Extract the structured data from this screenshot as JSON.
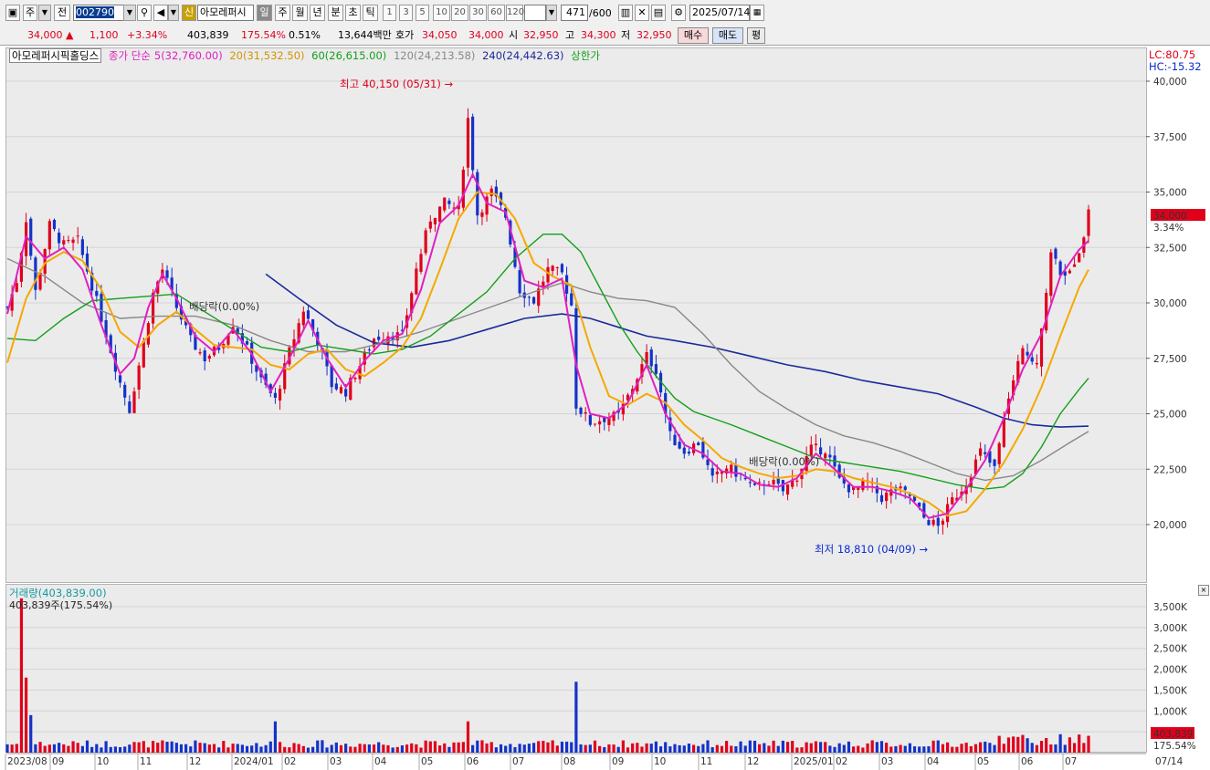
{
  "toolbar": {
    "market": "주",
    "prev": "전",
    "code": "002790",
    "indicator_badge": "신",
    "name_short": "아모레퍼시",
    "periods": [
      "일",
      "주",
      "월",
      "년",
      "분",
      "초",
      "틱"
    ],
    "active_period": "일",
    "intervals": [
      "1",
      "3",
      "5",
      "10",
      "20",
      "30",
      "60",
      "120"
    ],
    "count": "471",
    "count_total": "/600",
    "date": "2025/07/14"
  },
  "quote": {
    "price": "34,000",
    "change": "1,100",
    "change_pct": "+3.34%",
    "volume": "403,839",
    "volume_ratio": "175.54%",
    "turnover": "0.51%",
    "amount": "13,644백만",
    "hoga_label": "호가",
    "ask": "34,050",
    "bid": "34,000",
    "open_label": "시",
    "open": "32,950",
    "high_label": "고",
    "high": "34,300",
    "low_label": "저",
    "low": "32,950",
    "buy": "매수",
    "sell": "매도",
    "eval": "평"
  },
  "legend": {
    "stock_name": "아모레퍼시픽홀딩스",
    "close_type": "종가 단순",
    "ma5": "5(32,760.00)",
    "ma20": "20(31,532.50)",
    "ma60": "60(26,615.00)",
    "ma120": "120(24,213.58)",
    "ma240": "240(24,442.63)",
    "upper_limit": "상한가"
  },
  "right_info": {
    "lc": "LC:80.75",
    "hc": "HC:-15.32"
  },
  "annotations": {
    "high": "최고 40,150 (05/31)",
    "low": "최저 18,810 (04/09)",
    "dividend1": "배당락(0.00%)",
    "dividend2": "배당락(0.00%)",
    "last_price": "34,000",
    "last_pct": "3.34%"
  },
  "volume_panel": {
    "title": "거래량(403,839.00)",
    "sub": "403,839주(175.54%)",
    "last": "403,839",
    "last_pct": "175.54%"
  },
  "colors": {
    "up": "#e0001b",
    "down": "#1432c8",
    "ma5": "#e020c0",
    "ma20": "#f5a800",
    "ma60": "#12a01a",
    "ma120": "#888888",
    "ma240": "#1a2a9a"
  },
  "chart_data": {
    "type": "candlestick",
    "price_ticks": [
      40000,
      37500,
      35000,
      32500,
      30000,
      27500,
      25000,
      22500,
      20000
    ],
    "price_tick_labels": [
      "40,000",
      "37,500",
      "35,000",
      "32,500",
      "30,000",
      "27,500",
      "25,000",
      "22,500",
      "20,000"
    ],
    "volume_ticks": [
      3500000,
      3000000,
      2500000,
      2000000,
      1500000,
      1000000,
      500000
    ],
    "volume_tick_labels": [
      "3,500K",
      "3,000K",
      "2,500K",
      "2,000K",
      "1,500K",
      "1,000K",
      "500K"
    ],
    "x_labels": [
      "2023/08",
      "09",
      "10",
      "11",
      "12",
      "2024/01",
      "02",
      "03",
      "04",
      "05",
      "06",
      "07",
      "08",
      "09",
      "10",
      "11",
      "12",
      "2025/01",
      "02",
      "03",
      "04",
      "05",
      "06",
      "07"
    ],
    "x_axis_right": "07/14",
    "price_path": [
      [
        0,
        29800
      ],
      [
        2,
        31000
      ],
      [
        4,
        33800
      ],
      [
        6,
        30500
      ],
      [
        9,
        33500
      ],
      [
        12,
        32600
      ],
      [
        15,
        32800
      ],
      [
        18,
        30800
      ],
      [
        21,
        28600
      ],
      [
        24,
        26400
      ],
      [
        26,
        25200
      ],
      [
        29,
        28200
      ],
      [
        31,
        30400
      ],
      [
        33,
        31500
      ],
      [
        36,
        29800
      ],
      [
        39,
        28300
      ],
      [
        42,
        27500
      ],
      [
        45,
        28000
      ],
      [
        48,
        29100
      ],
      [
        51,
        27900
      ],
      [
        54,
        26500
      ],
      [
        57,
        25600
      ],
      [
        60,
        27800
      ],
      [
        63,
        29700
      ],
      [
        66,
        28300
      ],
      [
        69,
        26300
      ],
      [
        72,
        26000
      ],
      [
        75,
        27200
      ],
      [
        78,
        28400
      ],
      [
        81,
        28600
      ],
      [
        84,
        28500
      ],
      [
        87,
        31500
      ],
      [
        90,
        33800
      ],
      [
        93,
        34500
      ],
      [
        96,
        34200
      ],
      [
        98,
        38300
      ],
      [
        100,
        34000
      ],
      [
        103,
        35000
      ],
      [
        106,
        33900
      ],
      [
        109,
        30600
      ],
      [
        112,
        30100
      ],
      [
        115,
        31500
      ],
      [
        118,
        31300
      ],
      [
        120,
        29900
      ],
      [
        121,
        25400
      ],
      [
        124,
        24600
      ],
      [
        127,
        24800
      ],
      [
        130,
        24900
      ],
      [
        133,
        26200
      ],
      [
        136,
        27600
      ],
      [
        138,
        27000
      ],
      [
        141,
        24000
      ],
      [
        144,
        23300
      ],
      [
        147,
        23700
      ],
      [
        150,
        22000
      ],
      [
        153,
        22600
      ],
      [
        156,
        22200
      ],
      [
        159,
        21600
      ],
      [
        162,
        22000
      ],
      [
        165,
        21500
      ],
      [
        168,
        22200
      ],
      [
        171,
        23400
      ],
      [
        174,
        23400
      ],
      [
        177,
        22000
      ],
      [
        180,
        21500
      ],
      [
        183,
        21900
      ],
      [
        186,
        21200
      ],
      [
        189,
        21600
      ],
      [
        192,
        21300
      ],
      [
        195,
        20300
      ],
      [
        198,
        19900
      ],
      [
        201,
        21100
      ],
      [
        204,
        21900
      ],
      [
        207,
        23300
      ],
      [
        210,
        22500
      ],
      [
        213,
        25800
      ],
      [
        216,
        27800
      ],
      [
        219,
        27400
      ],
      [
        222,
        32200
      ],
      [
        225,
        31000
      ],
      [
        228,
        32400
      ],
      [
        230,
        34000
      ]
    ],
    "ma5_path": [
      [
        0,
        29500
      ],
      [
        4,
        33000
      ],
      [
        8,
        32000
      ],
      [
        12,
        32500
      ],
      [
        16,
        31500
      ],
      [
        20,
        29000
      ],
      [
        24,
        26800
      ],
      [
        27,
        27500
      ],
      [
        30,
        29800
      ],
      [
        33,
        31300
      ],
      [
        36,
        30200
      ],
      [
        40,
        28500
      ],
      [
        44,
        27800
      ],
      [
        48,
        28800
      ],
      [
        52,
        27700
      ],
      [
        56,
        26000
      ],
      [
        60,
        27500
      ],
      [
        64,
        29200
      ],
      [
        68,
        27500
      ],
      [
        72,
        26200
      ],
      [
        76,
        27400
      ],
      [
        80,
        28300
      ],
      [
        84,
        28600
      ],
      [
        88,
        30600
      ],
      [
        92,
        33600
      ],
      [
        96,
        34400
      ],
      [
        99,
        35800
      ],
      [
        102,
        34500
      ],
      [
        106,
        34100
      ],
      [
        110,
        31000
      ],
      [
        114,
        30700
      ],
      [
        118,
        31100
      ],
      [
        121,
        27200
      ],
      [
        124,
        25000
      ],
      [
        128,
        24800
      ],
      [
        132,
        25500
      ],
      [
        136,
        27200
      ],
      [
        140,
        25000
      ],
      [
        144,
        23600
      ],
      [
        148,
        23200
      ],
      [
        152,
        22400
      ],
      [
        156,
        22300
      ],
      [
        160,
        21800
      ],
      [
        164,
        21700
      ],
      [
        168,
        22100
      ],
      [
        172,
        23200
      ],
      [
        176,
        22500
      ],
      [
        180,
        21700
      ],
      [
        184,
        21700
      ],
      [
        188,
        21500
      ],
      [
        192,
        21200
      ],
      [
        196,
        20300
      ],
      [
        200,
        20500
      ],
      [
        204,
        21600
      ],
      [
        208,
        22900
      ],
      [
        212,
        24800
      ],
      [
        216,
        27000
      ],
      [
        220,
        28600
      ],
      [
        224,
        31200
      ],
      [
        228,
        32400
      ],
      [
        230,
        32800
      ]
    ],
    "ma20_path": [
      [
        0,
        27300
      ],
      [
        4,
        30200
      ],
      [
        8,
        31800
      ],
      [
        12,
        32300
      ],
      [
        16,
        31900
      ],
      [
        20,
        30600
      ],
      [
        24,
        28700
      ],
      [
        28,
        28000
      ],
      [
        32,
        29000
      ],
      [
        36,
        29600
      ],
      [
        40,
        28800
      ],
      [
        44,
        28100
      ],
      [
        48,
        28000
      ],
      [
        52,
        27900
      ],
      [
        56,
        27200
      ],
      [
        60,
        27000
      ],
      [
        64,
        27700
      ],
      [
        68,
        27900
      ],
      [
        72,
        27000
      ],
      [
        76,
        26700
      ],
      [
        80,
        27300
      ],
      [
        84,
        28000
      ],
      [
        88,
        29300
      ],
      [
        92,
        31500
      ],
      [
        96,
        33800
      ],
      [
        100,
        35000
      ],
      [
        104,
        34900
      ],
      [
        108,
        33800
      ],
      [
        112,
        31800
      ],
      [
        116,
        31200
      ],
      [
        120,
        30800
      ],
      [
        124,
        28000
      ],
      [
        128,
        25800
      ],
      [
        132,
        25400
      ],
      [
        136,
        25900
      ],
      [
        140,
        25500
      ],
      [
        144,
        24500
      ],
      [
        148,
        23800
      ],
      [
        152,
        23000
      ],
      [
        156,
        22600
      ],
      [
        160,
        22300
      ],
      [
        164,
        22100
      ],
      [
        168,
        22200
      ],
      [
        172,
        22500
      ],
      [
        176,
        22400
      ],
      [
        180,
        22100
      ],
      [
        184,
        21900
      ],
      [
        188,
        21700
      ],
      [
        192,
        21400
      ],
      [
        196,
        21000
      ],
      [
        200,
        20400
      ],
      [
        204,
        20600
      ],
      [
        208,
        21600
      ],
      [
        212,
        22800
      ],
      [
        216,
        24300
      ],
      [
        220,
        26200
      ],
      [
        224,
        28500
      ],
      [
        228,
        30700
      ],
      [
        230,
        31500
      ]
    ],
    "ma60_path": [
      [
        0,
        28400
      ],
      [
        6,
        28300
      ],
      [
        12,
        29300
      ],
      [
        18,
        30100
      ],
      [
        24,
        30200
      ],
      [
        30,
        30300
      ],
      [
        36,
        30400
      ],
      [
        42,
        29600
      ],
      [
        48,
        28800
      ],
      [
        54,
        28000
      ],
      [
        60,
        27800
      ],
      [
        66,
        28100
      ],
      [
        72,
        27900
      ],
      [
        78,
        27700
      ],
      [
        84,
        27900
      ],
      [
        90,
        28500
      ],
      [
        96,
        29500
      ],
      [
        102,
        30500
      ],
      [
        108,
        32000
      ],
      [
        114,
        33100
      ],
      [
        118,
        33100
      ],
      [
        122,
        32300
      ],
      [
        126,
        30700
      ],
      [
        130,
        29100
      ],
      [
        134,
        27800
      ],
      [
        138,
        26700
      ],
      [
        142,
        25700
      ],
      [
        146,
        25100
      ],
      [
        150,
        24800
      ],
      [
        154,
        24500
      ],
      [
        160,
        24000
      ],
      [
        166,
        23500
      ],
      [
        172,
        23000
      ],
      [
        178,
        22800
      ],
      [
        184,
        22600
      ],
      [
        190,
        22400
      ],
      [
        196,
        22100
      ],
      [
        202,
        21800
      ],
      [
        208,
        21600
      ],
      [
        212,
        21700
      ],
      [
        216,
        22300
      ],
      [
        220,
        23500
      ],
      [
        224,
        25000
      ],
      [
        228,
        26100
      ],
      [
        230,
        26600
      ]
    ],
    "ma120_path": [
      [
        0,
        32000
      ],
      [
        8,
        31200
      ],
      [
        16,
        30000
      ],
      [
        24,
        29300
      ],
      [
        32,
        29400
      ],
      [
        40,
        29400
      ],
      [
        48,
        29000
      ],
      [
        56,
        28300
      ],
      [
        64,
        27800
      ],
      [
        72,
        27800
      ],
      [
        80,
        28200
      ],
      [
        88,
        28700
      ],
      [
        96,
        29300
      ],
      [
        104,
        29900
      ],
      [
        112,
        30500
      ],
      [
        118,
        30900
      ],
      [
        124,
        30500
      ],
      [
        130,
        30200
      ],
      [
        136,
        30100
      ],
      [
        142,
        29800
      ],
      [
        148,
        28600
      ],
      [
        154,
        27200
      ],
      [
        160,
        26000
      ],
      [
        166,
        25200
      ],
      [
        172,
        24500
      ],
      [
        178,
        24000
      ],
      [
        184,
        23700
      ],
      [
        190,
        23300
      ],
      [
        196,
        22800
      ],
      [
        202,
        22300
      ],
      [
        208,
        22000
      ],
      [
        214,
        22200
      ],
      [
        220,
        22900
      ],
      [
        226,
        23700
      ],
      [
        230,
        24200
      ]
    ],
    "ma240_path": [
      [
        55,
        31300
      ],
      [
        62,
        30200
      ],
      [
        70,
        29000
      ],
      [
        78,
        28200
      ],
      [
        86,
        28000
      ],
      [
        94,
        28300
      ],
      [
        102,
        28800
      ],
      [
        110,
        29300
      ],
      [
        118,
        29500
      ],
      [
        124,
        29300
      ],
      [
        130,
        28900
      ],
      [
        136,
        28500
      ],
      [
        142,
        28300
      ],
      [
        150,
        28000
      ],
      [
        158,
        27600
      ],
      [
        166,
        27200
      ],
      [
        174,
        26900
      ],
      [
        182,
        26500
      ],
      [
        190,
        26200
      ],
      [
        198,
        25900
      ],
      [
        206,
        25300
      ],
      [
        212,
        24800
      ],
      [
        218,
        24500
      ],
      [
        224,
        24400
      ],
      [
        230,
        24440
      ]
    ]
  }
}
